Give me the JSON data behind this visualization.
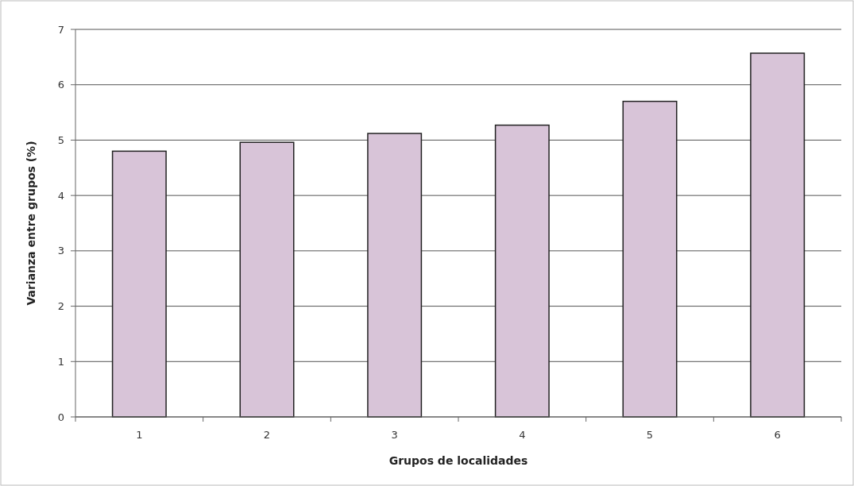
{
  "chart_data": {
    "type": "bar",
    "xlabel": "Grupos de localidades",
    "ylabel": "Varianza entre grupos (%)",
    "categories": [
      "1",
      "2",
      "3",
      "4",
      "5",
      "6"
    ],
    "values": [
      4.8,
      4.96,
      5.12,
      5.27,
      5.7,
      6.57
    ],
    "color": "#d8c4d8",
    "ylim": [
      0,
      7
    ],
    "yticks": [
      0,
      1,
      2,
      3,
      4,
      5,
      6,
      7
    ],
    "grid": "y"
  }
}
